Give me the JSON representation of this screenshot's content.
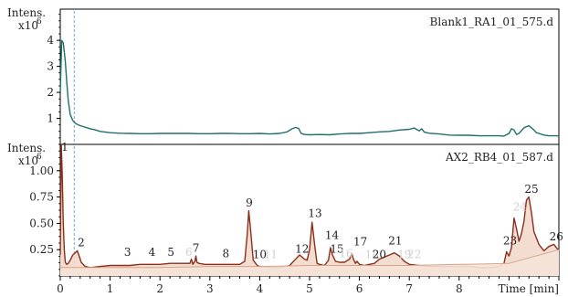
{
  "chart_data": [
    {
      "type": "line",
      "title": "Blank1_RA1_01_575.d",
      "ylabel": "Intens.",
      "yunit": "x10",
      "yexp": "6",
      "ylim": [
        0,
        5.2
      ],
      "xlim": [
        0,
        10
      ],
      "yticks": [
        1,
        2,
        3,
        4
      ],
      "series": [
        {
          "color": "#1f6f6a",
          "x": [
            0,
            0.03,
            0.06,
            0.1,
            0.13,
            0.16,
            0.2,
            0.25,
            0.3,
            0.35,
            0.4,
            0.5,
            0.6,
            0.7,
            0.8,
            1.0,
            1.2,
            1.4,
            1.6,
            1.8,
            2.0,
            2.2,
            2.4,
            2.6,
            2.8,
            3.0,
            3.2,
            3.4,
            3.6,
            3.8,
            4.0,
            4.2,
            4.4,
            4.55,
            4.65,
            4.72,
            4.78,
            4.83,
            4.9,
            5.0,
            5.2,
            5.4,
            5.6,
            5.8,
            6.0,
            6.2,
            6.4,
            6.6,
            6.8,
            7.0,
            7.1,
            7.2,
            7.25,
            7.3,
            7.4,
            7.6,
            7.8,
            8.0,
            8.2,
            8.4,
            8.6,
            8.8,
            8.9,
            9.0,
            9.05,
            9.1,
            9.15,
            9.2,
            9.3,
            9.4,
            9.5,
            9.55,
            9.6,
            9.7,
            9.8,
            9.9,
            10
          ],
          "y": [
            2.0,
            4.0,
            3.9,
            3.2,
            2.4,
            1.7,
            1.15,
            0.92,
            0.82,
            0.76,
            0.72,
            0.66,
            0.6,
            0.56,
            0.5,
            0.45,
            0.43,
            0.42,
            0.41,
            0.41,
            0.42,
            0.42,
            0.42,
            0.42,
            0.41,
            0.41,
            0.42,
            0.42,
            0.41,
            0.41,
            0.42,
            0.4,
            0.42,
            0.48,
            0.6,
            0.65,
            0.62,
            0.42,
            0.38,
            0.37,
            0.38,
            0.37,
            0.4,
            0.42,
            0.42,
            0.45,
            0.48,
            0.5,
            0.55,
            0.58,
            0.63,
            0.52,
            0.6,
            0.47,
            0.43,
            0.4,
            0.36,
            0.35,
            0.35,
            0.33,
            0.33,
            0.33,
            0.32,
            0.42,
            0.6,
            0.55,
            0.38,
            0.42,
            0.64,
            0.72,
            0.55,
            0.45,
            0.42,
            0.36,
            0.33,
            0.33,
            0.33
          ]
        }
      ]
    },
    {
      "type": "area",
      "title": "AX2_RB4_01_587.d",
      "ylabel": "Intens.",
      "yunit": "x10",
      "yexp": "6",
      "xlabel": "Time [min]",
      "ylim": [
        0,
        1.25
      ],
      "xlim": [
        0,
        10
      ],
      "yticks": [
        0.25,
        0.5,
        0.75,
        1.0
      ],
      "ytick_labels": [
        "0.25",
        "0.50",
        "0.75",
        "1.00"
      ],
      "xticks": [
        0,
        1,
        2,
        3,
        4,
        5,
        6,
        7,
        8
      ],
      "series": [
        {
          "color": "#8b2f1c",
          "fill": "#f1d9cb",
          "x": [
            0,
            0.02,
            0.04,
            0.06,
            0.08,
            0.1,
            0.13,
            0.16,
            0.2,
            0.25,
            0.3,
            0.34,
            0.38,
            0.42,
            0.5,
            0.6,
            0.8,
            1.0,
            1.2,
            1.4,
            1.6,
            1.8,
            2.0,
            2.2,
            2.4,
            2.6,
            2.63,
            2.66,
            2.7,
            2.72,
            2.74,
            2.78,
            2.9,
            3.0,
            3.2,
            3.4,
            3.6,
            3.7,
            3.75,
            3.78,
            3.82,
            3.87,
            3.95,
            4.0,
            4.2,
            4.4,
            4.6,
            4.7,
            4.8,
            4.85,
            4.9,
            4.95,
            5.0,
            5.05,
            5.1,
            5.15,
            5.2,
            5.3,
            5.38,
            5.42,
            5.46,
            5.52,
            5.6,
            5.7,
            5.8,
            5.85,
            5.88,
            5.92,
            5.95,
            6.0,
            6.1,
            6.2,
            6.3,
            6.4,
            6.5,
            6.6,
            6.7,
            6.8,
            6.9,
            7.0,
            7.2,
            7.4,
            7.6,
            7.8,
            8.0,
            8.2,
            8.4,
            8.6,
            8.8,
            8.9,
            8.95,
            9.0,
            9.05,
            9.1,
            9.15,
            9.2,
            9.25,
            9.3,
            9.35,
            9.4,
            9.45,
            9.5,
            9.6,
            9.7,
            9.8,
            9.9,
            10
          ],
          "y": [
            0.2,
            1.25,
            0.95,
            0.5,
            0.25,
            0.13,
            0.11,
            0.12,
            0.15,
            0.2,
            0.22,
            0.24,
            0.19,
            0.13,
            0.09,
            0.08,
            0.09,
            0.1,
            0.1,
            0.1,
            0.11,
            0.11,
            0.11,
            0.12,
            0.12,
            0.12,
            0.16,
            0.11,
            0.14,
            0.19,
            0.13,
            0.12,
            0.11,
            0.11,
            0.11,
            0.11,
            0.11,
            0.14,
            0.4,
            0.62,
            0.42,
            0.15,
            0.1,
            0.09,
            0.08,
            0.08,
            0.1,
            0.15,
            0.2,
            0.18,
            0.16,
            0.15,
            0.25,
            0.51,
            0.3,
            0.12,
            0.11,
            0.1,
            0.15,
            0.27,
            0.2,
            0.14,
            0.13,
            0.13,
            0.16,
            0.21,
            0.16,
            0.12,
            0.14,
            0.11,
            0.1,
            0.11,
            0.12,
            0.16,
            0.18,
            0.2,
            0.22,
            0.19,
            0.14,
            0.11,
            0.1,
            0.09,
            0.09,
            0.09,
            0.09,
            0.09,
            0.08,
            0.08,
            0.09,
            0.12,
            0.23,
            0.19,
            0.27,
            0.55,
            0.45,
            0.33,
            0.4,
            0.52,
            0.72,
            0.75,
            0.6,
            0.42,
            0.3,
            0.24,
            0.28,
            0.3,
            0.24
          ]
        },
        {
          "color": "#d9a38a",
          "fill": "#f5e3d8",
          "x": [
            0,
            1,
            2,
            3,
            4,
            5,
            6,
            7,
            8,
            9,
            10
          ],
          "y": [
            0.08,
            0.08,
            0.08,
            0.09,
            0.09,
            0.1,
            0.1,
            0.1,
            0.11,
            0.12,
            0.25
          ]
        }
      ],
      "peak_labels": [
        {
          "label": "1",
          "x": 0.09,
          "y": 1.19,
          "faded": false
        },
        {
          "label": "2",
          "x": 0.42,
          "y": 0.28,
          "faded": false
        },
        {
          "label": "3",
          "x": 1.35,
          "y": 0.19,
          "faded": false
        },
        {
          "label": "4",
          "x": 1.84,
          "y": 0.19,
          "faded": false
        },
        {
          "label": "5",
          "x": 2.22,
          "y": 0.19,
          "faded": false
        },
        {
          "label": "6",
          "x": 2.58,
          "y": 0.19,
          "faded": true
        },
        {
          "label": "7",
          "x": 2.72,
          "y": 0.23,
          "faded": false
        },
        {
          "label": "8",
          "x": 3.32,
          "y": 0.18,
          "faded": false
        },
        {
          "label": "9",
          "x": 3.79,
          "y": 0.66,
          "faded": false
        },
        {
          "label": "10",
          "x": 4.0,
          "y": 0.17,
          "faded": false
        },
        {
          "label": "11",
          "x": 4.22,
          "y": 0.17,
          "faded": true
        },
        {
          "label": "12",
          "x": 4.85,
          "y": 0.22,
          "faded": false
        },
        {
          "label": "13",
          "x": 5.11,
          "y": 0.56,
          "faded": false
        },
        {
          "label": "14",
          "x": 5.45,
          "y": 0.35,
          "faded": false
        },
        {
          "label": "15",
          "x": 5.55,
          "y": 0.22,
          "faded": false
        },
        {
          "label": "16",
          "x": 5.73,
          "y": 0.18,
          "faded": true
        },
        {
          "label": "17",
          "x": 6.02,
          "y": 0.29,
          "faded": false
        },
        {
          "label": "18",
          "x": 6.25,
          "y": 0.17,
          "faded": true
        },
        {
          "label": "20",
          "x": 6.4,
          "y": 0.17,
          "faded": false
        },
        {
          "label": "21",
          "x": 6.72,
          "y": 0.3,
          "faded": false
        },
        {
          "label": "19",
          "x": 6.9,
          "y": 0.17,
          "faded": true
        },
        {
          "label": "22",
          "x": 7.1,
          "y": 0.17,
          "faded": true
        },
        {
          "label": "23",
          "x": 9.02,
          "y": 0.3,
          "faded": false
        },
        {
          "label": "24",
          "x": 9.22,
          "y": 0.62,
          "faded": true
        },
        {
          "label": "25",
          "x": 9.45,
          "y": 0.79,
          "faded": false
        },
        {
          "label": "26",
          "x": 9.95,
          "y": 0.34,
          "faded": false
        }
      ]
    }
  ]
}
